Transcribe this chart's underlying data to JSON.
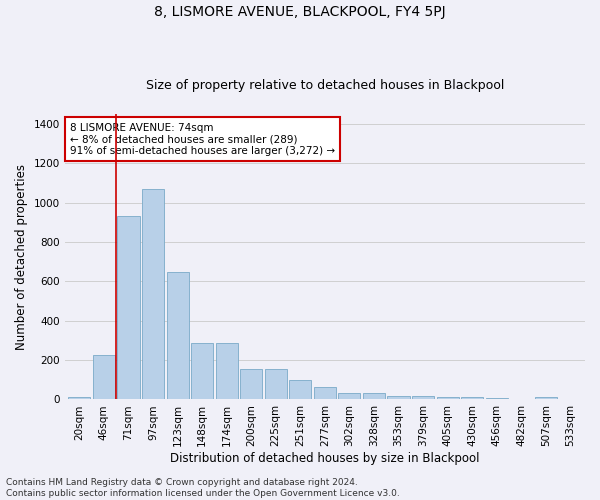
{
  "title": "8, LISMORE AVENUE, BLACKPOOL, FY4 5PJ",
  "subtitle": "Size of property relative to detached houses in Blackpool",
  "xlabel": "Distribution of detached houses by size in Blackpool",
  "ylabel": "Number of detached properties",
  "footnote1": "Contains HM Land Registry data © Crown copyright and database right 2024.",
  "footnote2": "Contains public sector information licensed under the Open Government Licence v3.0.",
  "bar_labels": [
    "20sqm",
    "46sqm",
    "71sqm",
    "97sqm",
    "123sqm",
    "148sqm",
    "174sqm",
    "200sqm",
    "225sqm",
    "251sqm",
    "277sqm",
    "302sqm",
    "328sqm",
    "353sqm",
    "379sqm",
    "405sqm",
    "430sqm",
    "456sqm",
    "482sqm",
    "507sqm",
    "533sqm"
  ],
  "bar_values": [
    15,
    225,
    930,
    1070,
    645,
    285,
    285,
    155,
    155,
    100,
    65,
    35,
    35,
    20,
    20,
    15,
    15,
    5,
    0,
    15,
    0
  ],
  "bar_color": "#b8d0e8",
  "bar_edge_color": "#7aaac8",
  "vline_color": "#cc0000",
  "vline_x": 1.5,
  "annotation_text": "8 LISMORE AVENUE: 74sqm\n← 8% of detached houses are smaller (289)\n91% of semi-detached houses are larger (3,272) →",
  "annotation_box_color": "#ffffff",
  "annotation_box_edge_color": "#cc0000",
  "ylim": [
    0,
    1450
  ],
  "yticks": [
    0,
    200,
    400,
    600,
    800,
    1000,
    1200,
    1400
  ],
  "grid_color": "#d0d0d0",
  "background_color": "#f0f0f8",
  "title_fontsize": 10,
  "subtitle_fontsize": 9,
  "label_fontsize": 8.5,
  "tick_fontsize": 7.5,
  "footnote_fontsize": 6.5
}
